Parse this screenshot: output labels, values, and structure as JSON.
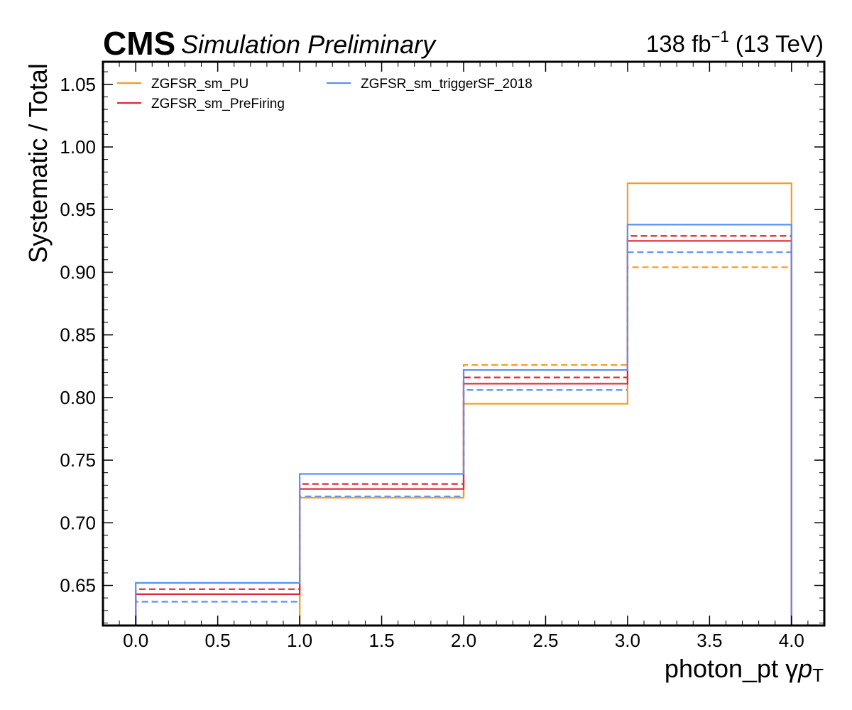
{
  "header": {
    "experiment": "CMS",
    "status": "Simulation Preliminary",
    "lumi_value": "138 fb",
    "lumi_exp": "−1",
    "energy": " (13 TeV)"
  },
  "chart_data": {
    "type": "line",
    "drawstyle": "step",
    "xlabel": "photon_pt   γ",
    "xlabel_var": "p",
    "xlabel_sub": "T",
    "ylabel": "Systematic / Total",
    "xlim": [
      -0.2,
      4.2
    ],
    "ylim": [
      0.618,
      1.068
    ],
    "xticks": [
      "0.0",
      "0.5",
      "1.0",
      "1.5",
      "2.0",
      "2.5",
      "3.0",
      "3.5",
      "4.0"
    ],
    "yticks": [
      "0.65",
      "0.70",
      "0.75",
      "0.80",
      "0.85",
      "0.90",
      "0.95",
      "1.00",
      "1.05"
    ],
    "bin_edges": [
      0,
      1,
      2,
      3,
      4
    ],
    "legend_position": "top-left",
    "series": [
      {
        "name": "ZGFSR_sm_PU",
        "color": "#f89c20",
        "up": [
          0.618,
          0.72,
          0.795,
          0.971
        ],
        "down": [
          0.618,
          0.72,
          0.826,
          0.904
        ]
      },
      {
        "name": "ZGFSR_sm_PreFiring",
        "color": "#e42536",
        "up": [
          0.643,
          0.727,
          0.811,
          0.925
        ],
        "down": [
          0.647,
          0.731,
          0.816,
          0.929
        ]
      },
      {
        "name": "ZGFSR_sm_triggerSF_2018",
        "color": "#5790fc",
        "up": [
          0.652,
          0.739,
          0.822,
          0.938
        ],
        "down": [
          0.637,
          0.721,
          0.806,
          0.916
        ]
      }
    ]
  }
}
